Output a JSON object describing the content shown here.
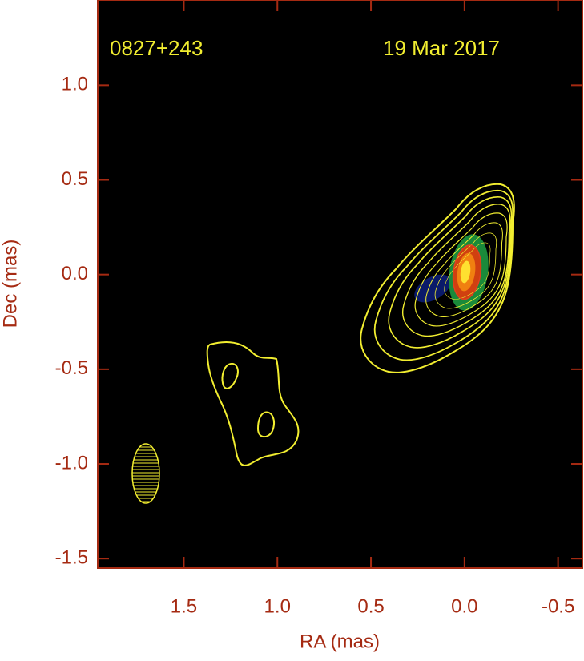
{
  "chart_data": {
    "type": "contour-map",
    "source_label": "0827+243",
    "date_label": "19 Mar 2017",
    "xlabel": "RA (mas)",
    "ylabel": "Dec (mas)",
    "xlim": [
      1.96,
      -0.63
    ],
    "ylim": [
      -1.55,
      1.45
    ],
    "xticks": [
      1.5,
      {
        "value": 1,
        "label": "1.0"
      },
      0.5,
      {
        "value": 0,
        "label": "0.0"
      },
      -0.5
    ],
    "yticks": [
      {
        "value": 1,
        "label": "1.0"
      },
      0.5,
      {
        "value": 0,
        "label": "0.0"
      },
      -0.5,
      {
        "value": -1,
        "label": "-1.0"
      },
      -1.5
    ],
    "axis_color": "#a52a12",
    "contour_color": "#f2ee30"
  }
}
